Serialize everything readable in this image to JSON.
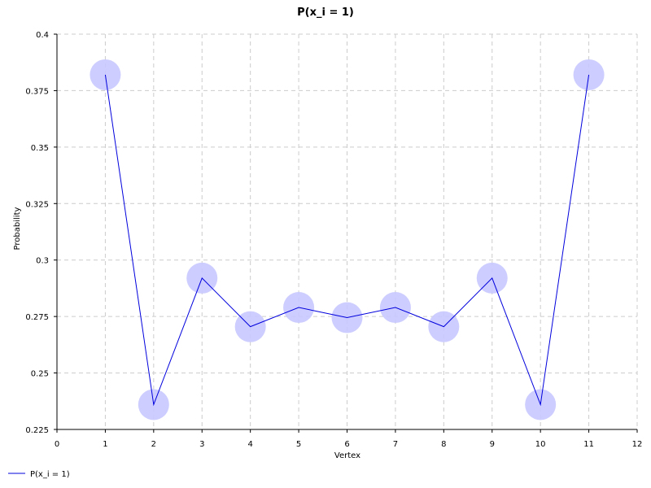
{
  "chart_data": {
    "type": "line",
    "title": "P(x_i = 1)",
    "xlabel": "Vertex",
    "ylabel": "Probability",
    "xlim": [
      0,
      12
    ],
    "ylim": [
      0.225,
      0.4
    ],
    "x_ticks": [
      0,
      1,
      2,
      3,
      4,
      5,
      6,
      7,
      8,
      9,
      10,
      11,
      12
    ],
    "x_tick_labels": [
      "0",
      "1",
      "2",
      "3",
      "4",
      "5",
      "6",
      "7",
      "8",
      "9",
      "10",
      "11",
      "12"
    ],
    "y_ticks": [
      0.225,
      0.25,
      0.275,
      0.3,
      0.325,
      0.35,
      0.375,
      0.4
    ],
    "y_tick_labels": [
      "0.225",
      "0.25",
      "0.275",
      "0.3",
      "0.325",
      "0.35",
      "0.375",
      "0.4"
    ],
    "grid": true,
    "legend_position": "bottom-left",
    "series": [
      {
        "name": "P(x_i = 1)",
        "color": "#0000dd",
        "marker_color": "#c8c8ff",
        "x": [
          1,
          2,
          3,
          4,
          5,
          6,
          7,
          8,
          9,
          10,
          11
        ],
        "values": [
          0.382,
          0.236,
          0.292,
          0.2705,
          0.279,
          0.2745,
          0.279,
          0.2705,
          0.292,
          0.236,
          0.382
        ]
      }
    ]
  }
}
